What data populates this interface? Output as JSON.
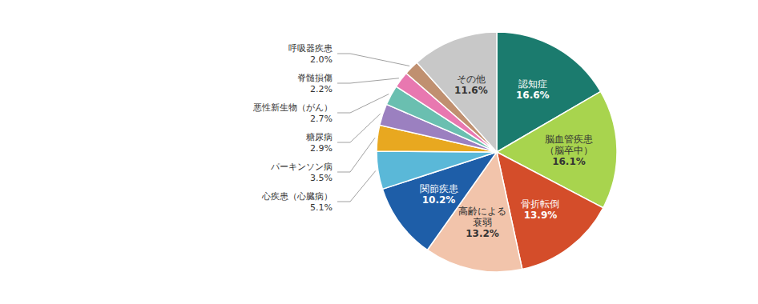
{
  "chart_data": {
    "type": "pie",
    "categories": [
      "認知症",
      "脳血管疾患\n（脳卒中）",
      "骨折転倒",
      "高齢による\n衰弱",
      "関節疾患",
      "心疾患（心臓病）",
      "パーキンソン病",
      "糖尿病",
      "悪性新生物（がん）",
      "脊髄損傷",
      "呼吸器疾患",
      "その他"
    ],
    "values": [
      16.6,
      16.1,
      13.9,
      13.2,
      10.2,
      5.1,
      3.5,
      2.9,
      2.7,
      2.2,
      2.0,
      11.6
    ],
    "value_labels": [
      "16.6%",
      "16.1%",
      "13.9%",
      "13.2%",
      "10.2%",
      "5.1%",
      "3.5%",
      "2.9%",
      "2.7%",
      "2.2%",
      "2.0%",
      "11.6%"
    ],
    "colors": [
      "#1b7b6e",
      "#a8d44e",
      "#d44d2a",
      "#f2c4ab",
      "#1e5ea8",
      "#5ab8d8",
      "#e8a820",
      "#9b80c0",
      "#6abfb0",
      "#e878b0",
      "#c09070",
      "#c8c8c8"
    ]
  }
}
